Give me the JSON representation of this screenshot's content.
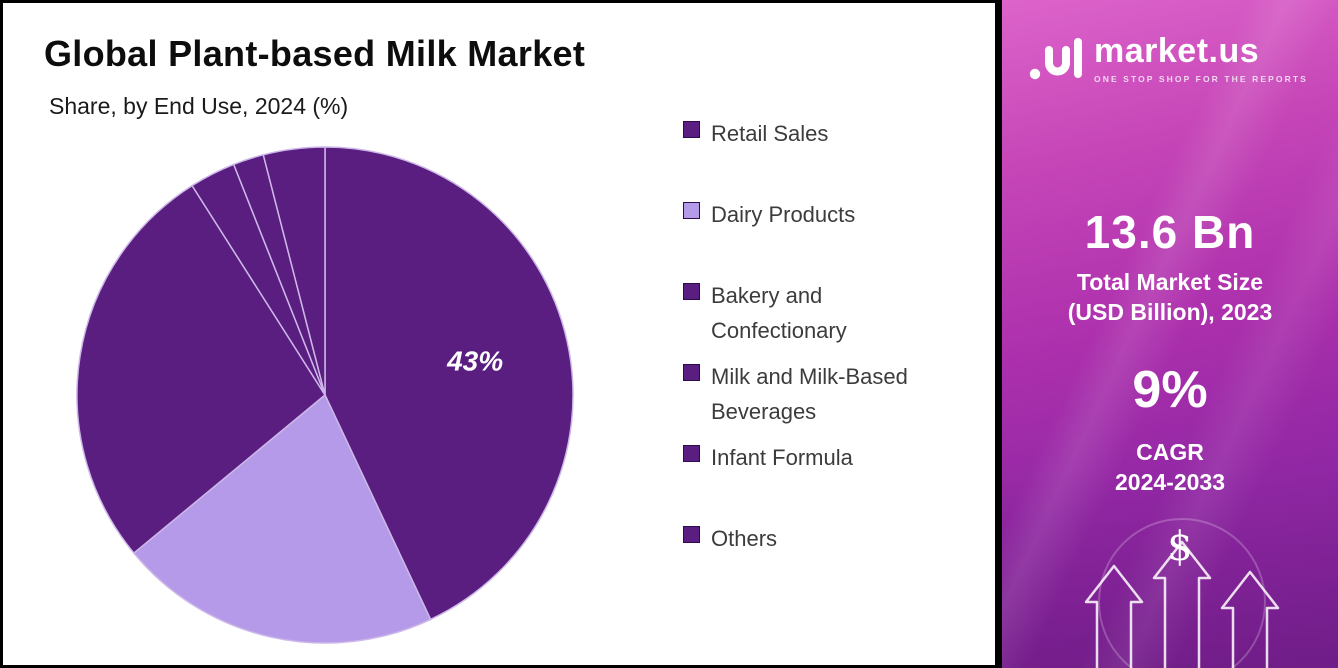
{
  "chart": {
    "title": "Global Plant-based Milk Market",
    "subtitle": "Share, by End Use, 2024 (%)"
  },
  "chart_data": {
    "type": "pie",
    "title": "Global Plant-based Milk Market",
    "subtitle": "Share, by End Use, 2024 (%)",
    "unit": "percent",
    "legend_position": "right",
    "start_angle_deg": 0,
    "direction": "clockwise",
    "slices": [
      {
        "label": "Retail Sales",
        "value": 43,
        "color": "#5a1d80",
        "data_label": "43%"
      },
      {
        "label": "Dairy Products",
        "value": 21,
        "color": "#b49ae8"
      },
      {
        "label": "Bakery and Confectionary",
        "value": 27,
        "color": "#5a1d80"
      },
      {
        "label": "Milk and Milk-Based Beverages",
        "value": 3,
        "color": "#5a1d80"
      },
      {
        "label": "Infant Formula",
        "value": 2,
        "color": "#5a1d80"
      },
      {
        "label": "Others",
        "value": 4,
        "color": "#5a1d80"
      }
    ]
  },
  "sidebar": {
    "logo_text": "market.us",
    "tagline": "ONE STOP SHOP FOR THE REPORTS",
    "market_size_value": "13.6 Bn",
    "market_size_label_line1": "Total Market Size",
    "market_size_label_line2": "(USD Billion), 2023",
    "cagr_value": "9%",
    "cagr_label_line1": "CAGR",
    "cagr_label_line2": "2024-2033",
    "dollar_symbol": "$",
    "gradient_top": "#dd64cb",
    "gradient_bottom": "#7a2396"
  }
}
